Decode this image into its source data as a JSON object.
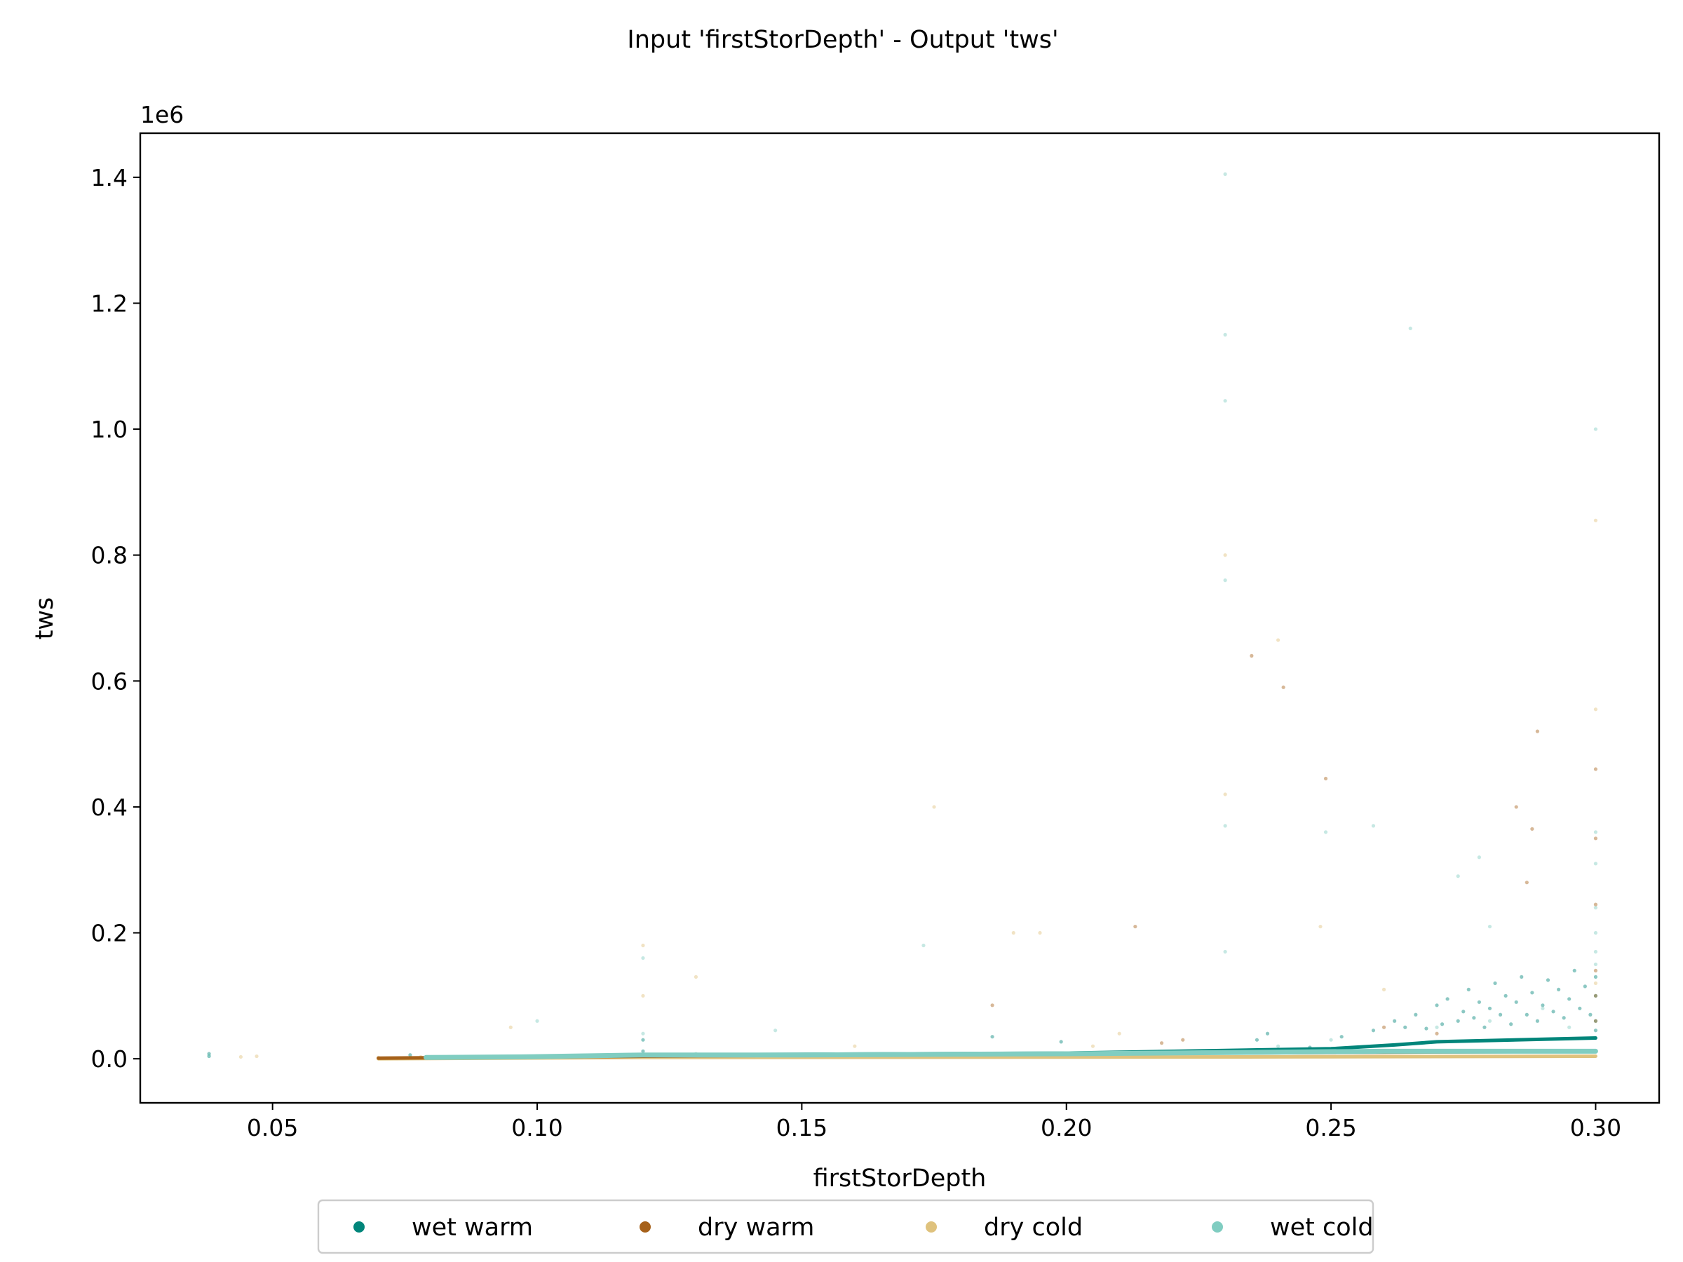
{
  "chart_data": {
    "type": "scatter",
    "title": "Input 'firstStorDepth' - Output 'tws'",
    "xlabel": "firstStorDepth",
    "ylabel": "tws",
    "y_offset_label": "1e6",
    "xlim": [
      0.025,
      0.312
    ],
    "ylim": [
      -0.07,
      1.47
    ],
    "y_scale_factor": 1000000,
    "xticks": [
      0.05,
      0.1,
      0.15,
      0.2,
      0.25,
      0.3
    ],
    "xtick_labels": [
      "0.05",
      "0.10",
      "0.15",
      "0.20",
      "0.25",
      "0.30"
    ],
    "yticks": [
      0.0,
      0.2,
      0.4,
      0.6,
      0.8,
      1.0,
      1.2,
      1.4
    ],
    "ytick_labels": [
      "0.0",
      "0.2",
      "0.4",
      "0.6",
      "0.8",
      "1.0",
      "1.2",
      "1.4"
    ],
    "grid": false,
    "legend_position": "bottom-center",
    "series": [
      {
        "name": "wet warm",
        "color": "#01857a",
        "trend": [
          [
            0.079,
            0.002
          ],
          [
            0.097,
            0.003
          ],
          [
            0.12,
            0.006
          ],
          [
            0.2,
            0.009
          ],
          [
            0.25,
            0.016
          ],
          [
            0.262,
            0.022
          ],
          [
            0.27,
            0.027
          ],
          [
            0.3,
            0.033
          ]
        ],
        "points": [
          [
            0.038,
            0.004
          ],
          [
            0.038,
            0.008
          ],
          [
            0.076,
            0.006
          ],
          [
            0.11,
            0.005
          ],
          [
            0.12,
            0.03
          ],
          [
            0.12,
            0.012
          ],
          [
            0.186,
            0.035
          ],
          [
            0.199,
            0.027
          ],
          [
            0.236,
            0.03
          ],
          [
            0.238,
            0.04
          ],
          [
            0.246,
            0.018
          ],
          [
            0.252,
            0.035
          ],
          [
            0.258,
            0.045
          ],
          [
            0.262,
            0.06
          ],
          [
            0.264,
            0.05
          ],
          [
            0.266,
            0.07
          ],
          [
            0.268,
            0.048
          ],
          [
            0.27,
            0.085
          ],
          [
            0.271,
            0.055
          ],
          [
            0.272,
            0.095
          ],
          [
            0.274,
            0.06
          ],
          [
            0.275,
            0.075
          ],
          [
            0.276,
            0.11
          ],
          [
            0.277,
            0.065
          ],
          [
            0.278,
            0.09
          ],
          [
            0.279,
            0.05
          ],
          [
            0.28,
            0.08
          ],
          [
            0.281,
            0.12
          ],
          [
            0.282,
            0.07
          ],
          [
            0.283,
            0.1
          ],
          [
            0.284,
            0.055
          ],
          [
            0.285,
            0.09
          ],
          [
            0.286,
            0.13
          ],
          [
            0.287,
            0.07
          ],
          [
            0.288,
            0.105
          ],
          [
            0.289,
            0.06
          ],
          [
            0.29,
            0.085
          ],
          [
            0.291,
            0.125
          ],
          [
            0.292,
            0.075
          ],
          [
            0.293,
            0.11
          ],
          [
            0.294,
            0.065
          ],
          [
            0.295,
            0.095
          ],
          [
            0.296,
            0.14
          ],
          [
            0.297,
            0.08
          ],
          [
            0.298,
            0.115
          ],
          [
            0.299,
            0.07
          ],
          [
            0.3,
            0.1
          ],
          [
            0.3,
            0.13
          ],
          [
            0.3,
            0.06
          ],
          [
            0.3,
            0.045
          ]
        ]
      },
      {
        "name": "dry warm",
        "color": "#a6611a",
        "trend": [
          [
            0.07,
            0.001
          ],
          [
            0.12,
            0.004
          ],
          [
            0.2,
            0.008
          ],
          [
            0.3,
            0.012
          ]
        ],
        "points": [
          [
            0.07,
            0.001
          ],
          [
            0.074,
            0.001
          ],
          [
            0.186,
            0.085
          ],
          [
            0.213,
            0.21
          ],
          [
            0.218,
            0.025
          ],
          [
            0.222,
            0.03
          ],
          [
            0.235,
            0.64
          ],
          [
            0.241,
            0.59
          ],
          [
            0.249,
            0.445
          ],
          [
            0.285,
            0.4
          ],
          [
            0.287,
            0.28
          ],
          [
            0.288,
            0.365
          ],
          [
            0.289,
            0.52
          ],
          [
            0.3,
            0.46
          ],
          [
            0.3,
            0.35
          ],
          [
            0.3,
            0.245
          ],
          [
            0.3,
            0.14
          ],
          [
            0.3,
            0.1
          ],
          [
            0.3,
            0.06
          ],
          [
            0.26,
            0.05
          ],
          [
            0.27,
            0.04
          ]
        ]
      },
      {
        "name": "dry cold",
        "color": "#dfc27d",
        "trend": [
          [
            0.07,
            0.0
          ],
          [
            0.12,
            0.002
          ],
          [
            0.24,
            0.003
          ],
          [
            0.3,
            0.004
          ]
        ],
        "points": [
          [
            0.044,
            0.003
          ],
          [
            0.047,
            0.004
          ],
          [
            0.07,
            0.002
          ],
          [
            0.078,
            0.003
          ],
          [
            0.095,
            0.05
          ],
          [
            0.12,
            0.18
          ],
          [
            0.12,
            0.1
          ],
          [
            0.13,
            0.13
          ],
          [
            0.16,
            0.02
          ],
          [
            0.175,
            0.4
          ],
          [
            0.19,
            0.2
          ],
          [
            0.195,
            0.2
          ],
          [
            0.205,
            0.02
          ],
          [
            0.21,
            0.04
          ],
          [
            0.23,
            0.8
          ],
          [
            0.23,
            0.42
          ],
          [
            0.24,
            0.665
          ],
          [
            0.248,
            0.21
          ],
          [
            0.26,
            0.11
          ],
          [
            0.3,
            0.855
          ],
          [
            0.3,
            0.555
          ],
          [
            0.3,
            0.12
          ]
        ]
      },
      {
        "name": "wet cold",
        "color": "#80cdc1",
        "trend": [
          [
            0.079,
            0.002
          ],
          [
            0.097,
            0.003
          ],
          [
            0.12,
            0.006
          ],
          [
            0.15,
            0.006
          ],
          [
            0.2,
            0.008
          ],
          [
            0.26,
            0.012
          ],
          [
            0.3,
            0.012
          ]
        ],
        "points": [
          [
            0.038,
            0.005
          ],
          [
            0.082,
            0.003
          ],
          [
            0.1,
            0.06
          ],
          [
            0.12,
            0.16
          ],
          [
            0.12,
            0.04
          ],
          [
            0.13,
            0.008
          ],
          [
            0.145,
            0.045
          ],
          [
            0.173,
            0.18
          ],
          [
            0.23,
            1.405
          ],
          [
            0.23,
            1.15
          ],
          [
            0.23,
            1.045
          ],
          [
            0.23,
            0.76
          ],
          [
            0.23,
            0.37
          ],
          [
            0.23,
            0.17
          ],
          [
            0.249,
            0.36
          ],
          [
            0.258,
            0.37
          ],
          [
            0.265,
            1.16
          ],
          [
            0.274,
            0.29
          ],
          [
            0.278,
            0.32
          ],
          [
            0.28,
            0.21
          ],
          [
            0.3,
            1.0
          ],
          [
            0.3,
            0.36
          ],
          [
            0.3,
            0.31
          ],
          [
            0.3,
            0.24
          ],
          [
            0.3,
            0.2
          ],
          [
            0.3,
            0.17
          ],
          [
            0.3,
            0.15
          ],
          [
            0.24,
            0.02
          ],
          [
            0.25,
            0.03
          ],
          [
            0.27,
            0.05
          ],
          [
            0.28,
            0.06
          ],
          [
            0.29,
            0.08
          ],
          [
            0.295,
            0.05
          ]
        ]
      }
    ]
  }
}
